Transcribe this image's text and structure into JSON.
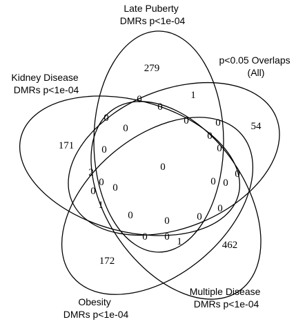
{
  "sets": [
    {
      "id": "late-puberty",
      "lines": [
        "Late Puberty",
        "DMRs p<1e-04"
      ]
    },
    {
      "id": "kidney-disease",
      "lines": [
        "Kidney Disease",
        "DMRs p<1e-04"
      ]
    },
    {
      "id": "obesity",
      "lines": [
        "Obesity",
        "DMRs p<1e-04"
      ]
    },
    {
      "id": "multiple-disease",
      "lines": [
        "Multiple Disease",
        "DMRs p<1e-04"
      ]
    },
    {
      "id": "p-overlaps",
      "lines": [
        "p<0.05 Overlaps",
        "(All)"
      ]
    }
  ],
  "regions": [
    "279",
    "171",
    "54",
    "172",
    "462",
    "0",
    "1",
    "2",
    "1",
    "1",
    "0",
    "0",
    "0",
    "0",
    "0",
    "0",
    "0",
    "0",
    "0",
    "0",
    "0",
    "0",
    "0",
    "0",
    "0",
    "0",
    "0",
    "0",
    "0",
    "0",
    "0"
  ]
}
